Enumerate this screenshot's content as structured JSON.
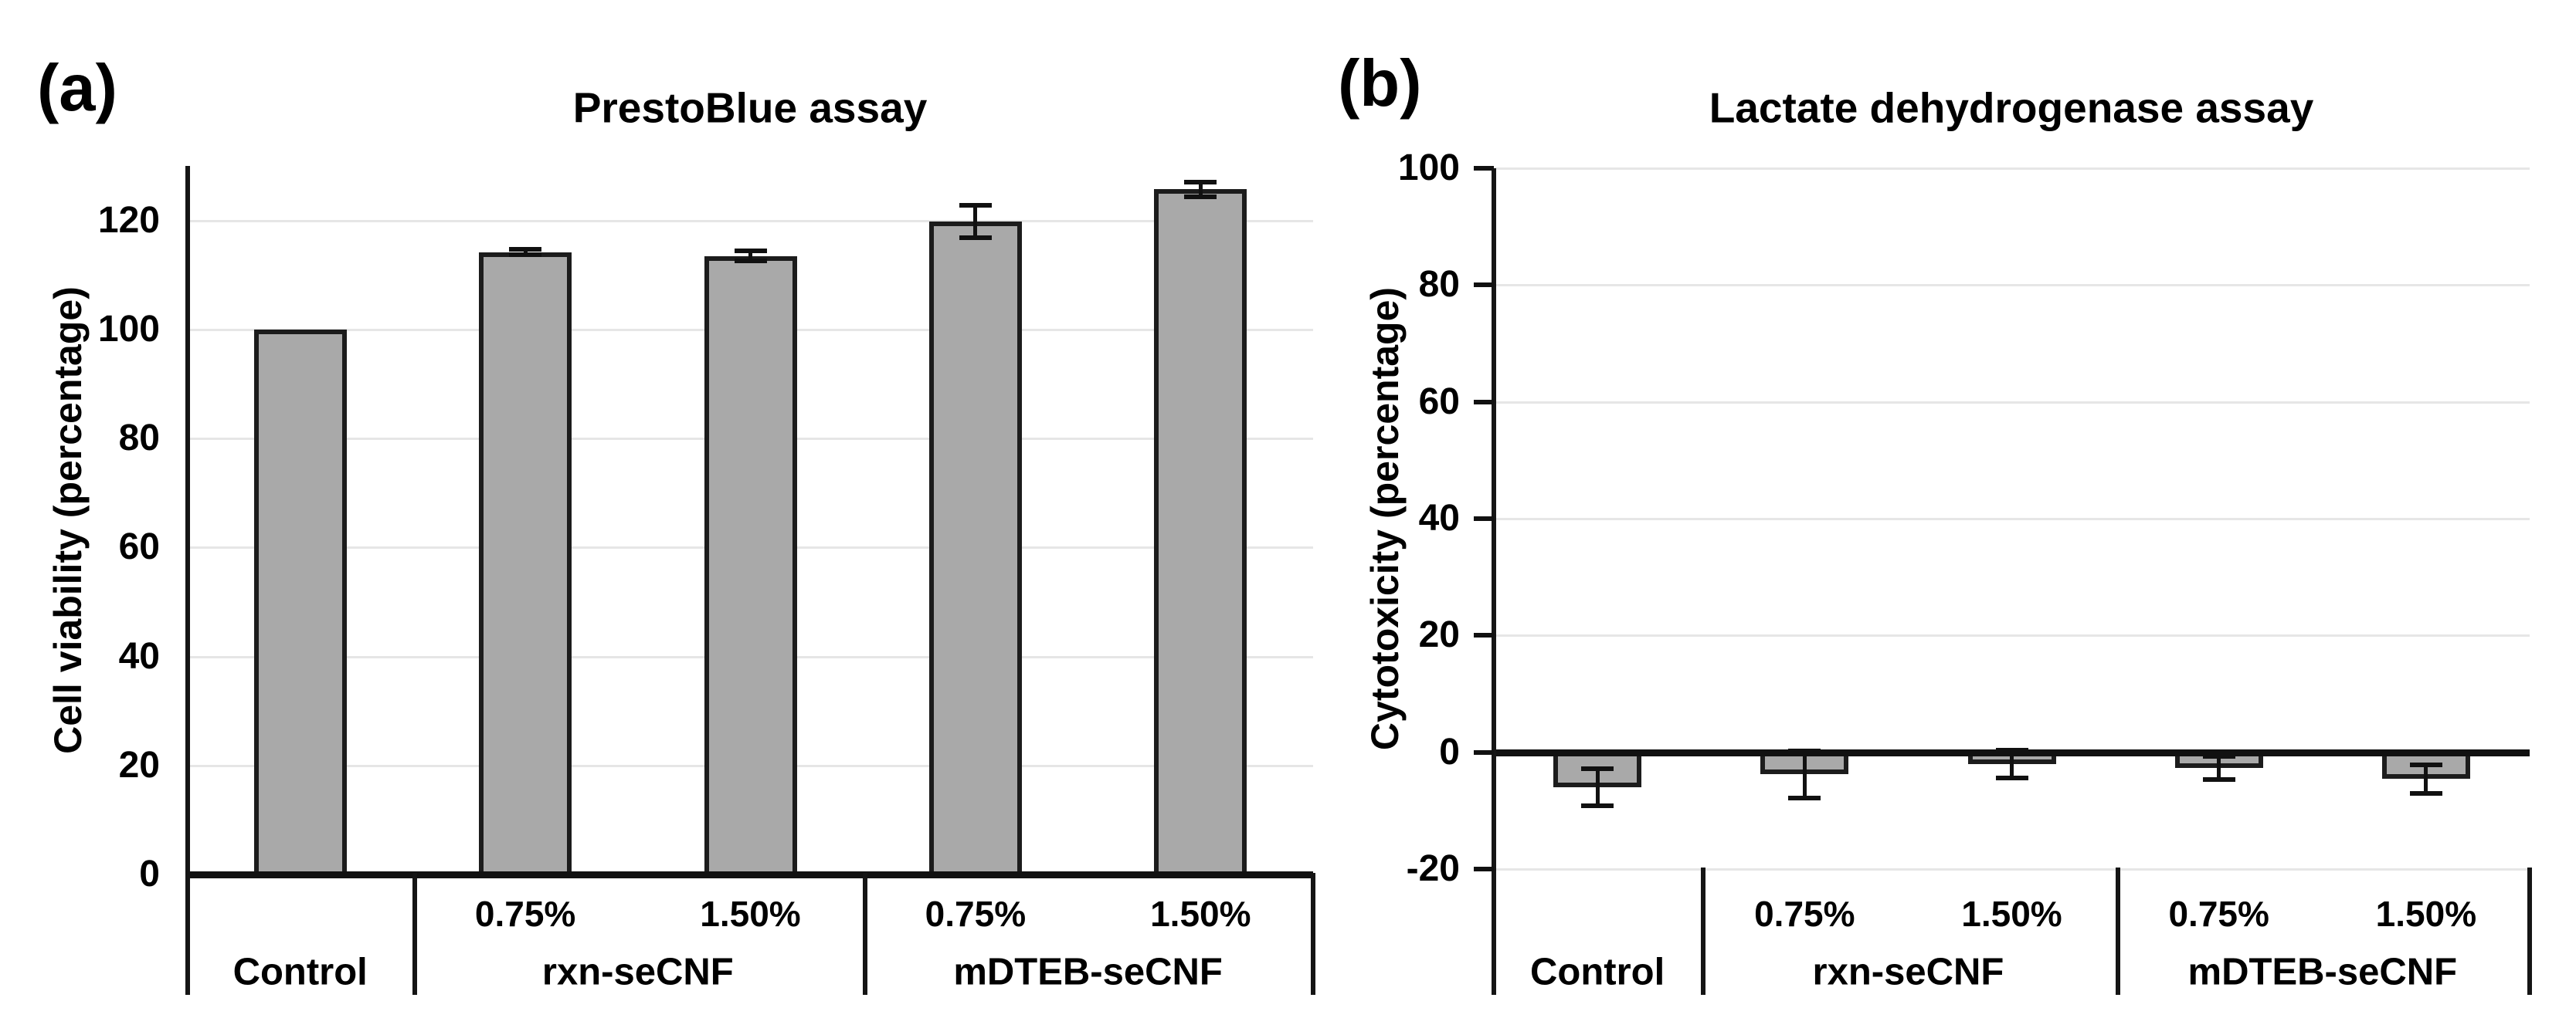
{
  "figure": {
    "background_color": "#ffffff",
    "text_color": "#000000",
    "gridline_color": "#e6e6e6",
    "axis_color": "#111111",
    "bar_fill_color": "#a9a9a9",
    "bar_edge_color": "#1c1c1c"
  },
  "chart_data": [
    {
      "type": "bar",
      "panel_label": "(a)",
      "title": "PrestoBlue assay",
      "xlabel": "",
      "ylabel": "Cell viability (percentage)",
      "ylim": [
        0,
        130
      ],
      "yticks": [
        120,
        100,
        80,
        60,
        40,
        20,
        0
      ],
      "grid": true,
      "legend": "none",
      "categories": [
        "Control",
        "rxn-seCNF 0.75%",
        "rxn-seCNF 1.50%",
        "mDTEB-seCNF 0.75%",
        "mDTEB-seCNF 1.50%"
      ],
      "values": [
        100,
        114.2,
        113.5,
        119.8,
        125.7
      ],
      "errors": [
        0,
        0.5,
        0.9,
        3.0,
        1.3
      ],
      "conc_labels": [
        "",
        "0.75%",
        "1.50%",
        "0.75%",
        "1.50%"
      ],
      "groups": [
        {
          "label": "Control",
          "span": 1
        },
        {
          "label": "rxn-seCNF",
          "span": 2
        },
        {
          "label": "mDTEB-seCNF",
          "span": 2
        }
      ]
    },
    {
      "type": "bar",
      "panel_label": "(b)",
      "title": "Lactate dehydrogenase assay",
      "xlabel": "",
      "ylabel": "Cytotoxicity (percentage)",
      "ylim": [
        -20,
        100
      ],
      "yticks": [
        100,
        80,
        60,
        40,
        20,
        0,
        -20
      ],
      "grid": true,
      "legend": "none",
      "categories": [
        "Control",
        "rxn-seCNF 0.75%",
        "rxn-seCNF 1.50%",
        "mDTEB-seCNF 0.75%",
        "mDTEB-seCNF 1.50%"
      ],
      "values": [
        -6.0,
        -3.8,
        -2.0,
        -2.7,
        -4.6
      ],
      "errors": [
        3.2,
        4.0,
        2.4,
        2.0,
        2.4
      ],
      "conc_labels": [
        "",
        "0.75%",
        "1.50%",
        "0.75%",
        "1.50%"
      ],
      "groups": [
        {
          "label": "Control",
          "span": 1
        },
        {
          "label": "rxn-seCNF",
          "span": 2
        },
        {
          "label": "mDTEB-seCNF",
          "span": 2
        }
      ]
    }
  ]
}
